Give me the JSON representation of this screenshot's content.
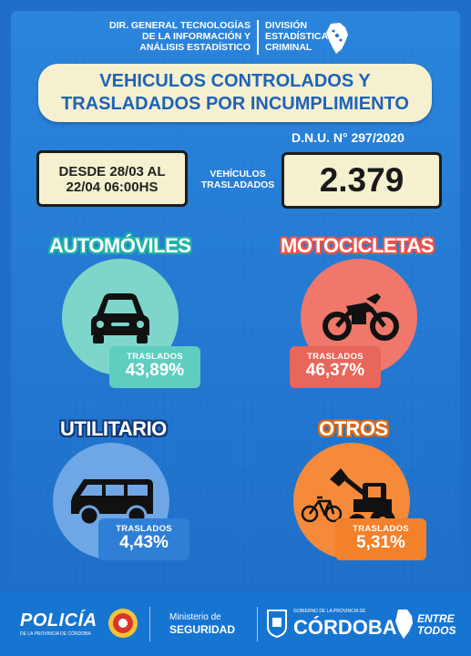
{
  "header": {
    "org_line1": "DIR. GENERAL TECNOLOGÍAS",
    "org_line2": "DE LA INFORMACIÓN Y",
    "org_line3": "ANÁLISIS ESTADÍSTICO",
    "div_line1": "DIVISIÓN",
    "div_line2": "ESTADÍSTICA",
    "div_line3": "CRIMINAL"
  },
  "title": {
    "line1": "VEHICULOS CONTROLADOS Y",
    "line2": "TRASLADADOS POR INCUMPLIMIENTO"
  },
  "decree": "D.N.U. N° 297/2020",
  "period": {
    "line1": "DESDE 28/03 AL",
    "line2": "22/04 06:00HS"
  },
  "vehicles_label": {
    "line1": "VEHÍCULOS",
    "line2": "TRASLADADOS"
  },
  "total": "2.379",
  "categories": [
    {
      "name": "AUTOMÓVILES",
      "tag_label": "TRASLADOS",
      "value": "43,89%",
      "icon": "car-icon",
      "color": "#7ed6cb"
    },
    {
      "name": "MOTOCICLETAS",
      "tag_label": "TRASLADOS",
      "value": "46,37%",
      "icon": "motorcycle-icon",
      "color": "#f0776b"
    },
    {
      "name": "UTILITARIO",
      "tag_label": "TRASLADOS",
      "value": "4,43%",
      "icon": "van-icon",
      "color": "#6fa7e6"
    },
    {
      "name": "OTROS",
      "tag_label": "TRASLADOS",
      "value": "5,31%",
      "icon": "bicycle-tractor-icon",
      "color": "#f48a3a"
    }
  ],
  "footer": {
    "policia": "POLICÍA",
    "policia_sub": "DE LA PROVINCIA DE CÓRDOBA",
    "ministerio_line1": "Ministerio de",
    "ministerio_line2": "SEGURIDAD",
    "gobierno": "GOBIERNO DE LA PROVINCIA DE",
    "cordoba": "CÓRDOBA",
    "entre": "ENTRE",
    "todos": "TODOS"
  }
}
